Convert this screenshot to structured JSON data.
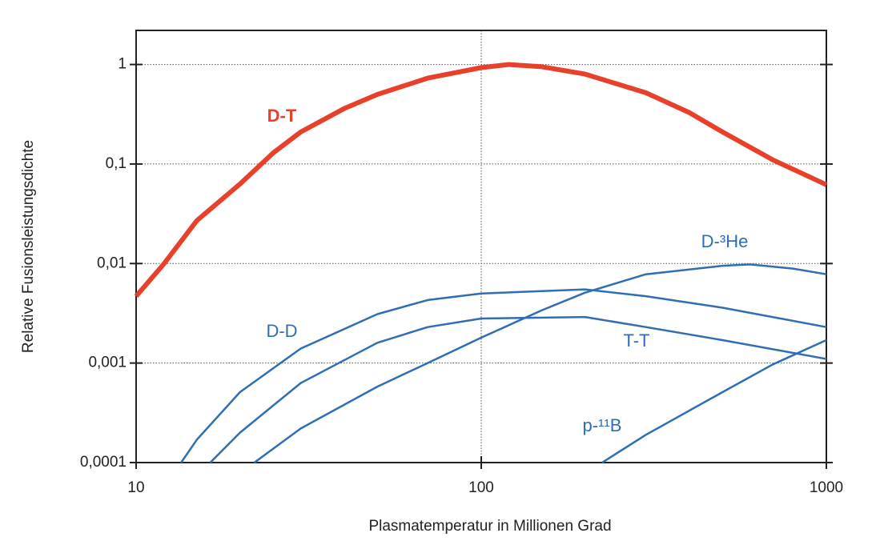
{
  "chart_data": {
    "type": "line",
    "xlabel": "Plasmatemperatur in Millionen Grad",
    "ylabel": "Relative Fusionsleistungsdichte",
    "xscale": "log",
    "yscale": "log",
    "xlim": [
      10,
      1000
    ],
    "ylim": [
      0.0001,
      2.2
    ],
    "xticks": [
      10,
      100,
      1000
    ],
    "yticks": [
      1,
      {
        "value": 0.1,
        "label": "0,1"
      },
      {
        "value": 0.01,
        "label": "0,01"
      },
      {
        "value": 0.001,
        "label": "0,001"
      },
      {
        "value": 0.0001,
        "label": "0,0001"
      }
    ],
    "grid": true,
    "series": [
      {
        "name": "D-T",
        "color": "#e8402a",
        "x": [
          10,
          12,
          15,
          20,
          25,
          30,
          40,
          50,
          70,
          100,
          120,
          150,
          200,
          300,
          400,
          500,
          700,
          1000
        ],
        "values": [
          0.0047,
          0.0098,
          0.027,
          0.063,
          0.13,
          0.21,
          0.36,
          0.5,
          0.73,
          0.93,
          1.0,
          0.95,
          0.8,
          0.52,
          0.33,
          0.21,
          0.11,
          0.062
        ]
      },
      {
        "name": "D-D",
        "color": "#2f6db5",
        "x": [
          13.5,
          15,
          20,
          30,
          50,
          70,
          100,
          200,
          300,
          500,
          1000
        ],
        "values": [
          0.0001,
          0.00017,
          0.00051,
          0.0014,
          0.0031,
          0.0043,
          0.005,
          0.0055,
          0.0047,
          0.0036,
          0.0023
        ]
      },
      {
        "name": "T-T",
        "color": "#2f6db5",
        "x": [
          16.4,
          20,
          30,
          50,
          70,
          100,
          200,
          300,
          500,
          1000
        ],
        "values": [
          0.0001,
          0.0002,
          0.00063,
          0.0016,
          0.0023,
          0.0028,
          0.0029,
          0.0023,
          0.0017,
          0.0011
        ]
      },
      {
        "name": "D-³He",
        "color": "#2f6db5",
        "x": [
          22,
          30,
          50,
          70,
          100,
          150,
          200,
          300,
          500,
          600,
          800,
          1000
        ],
        "values": [
          0.0001,
          0.00022,
          0.00058,
          0.001,
          0.0018,
          0.0034,
          0.0051,
          0.0078,
          0.0095,
          0.0098,
          0.0089,
          0.0078
        ]
      },
      {
        "name": "p-¹¹B",
        "color": "#2f6db5",
        "x": [
          224,
          300,
          500,
          700,
          1000
        ],
        "values": [
          0.0001,
          0.00019,
          0.00051,
          0.00097,
          0.0017
        ]
      }
    ]
  }
}
